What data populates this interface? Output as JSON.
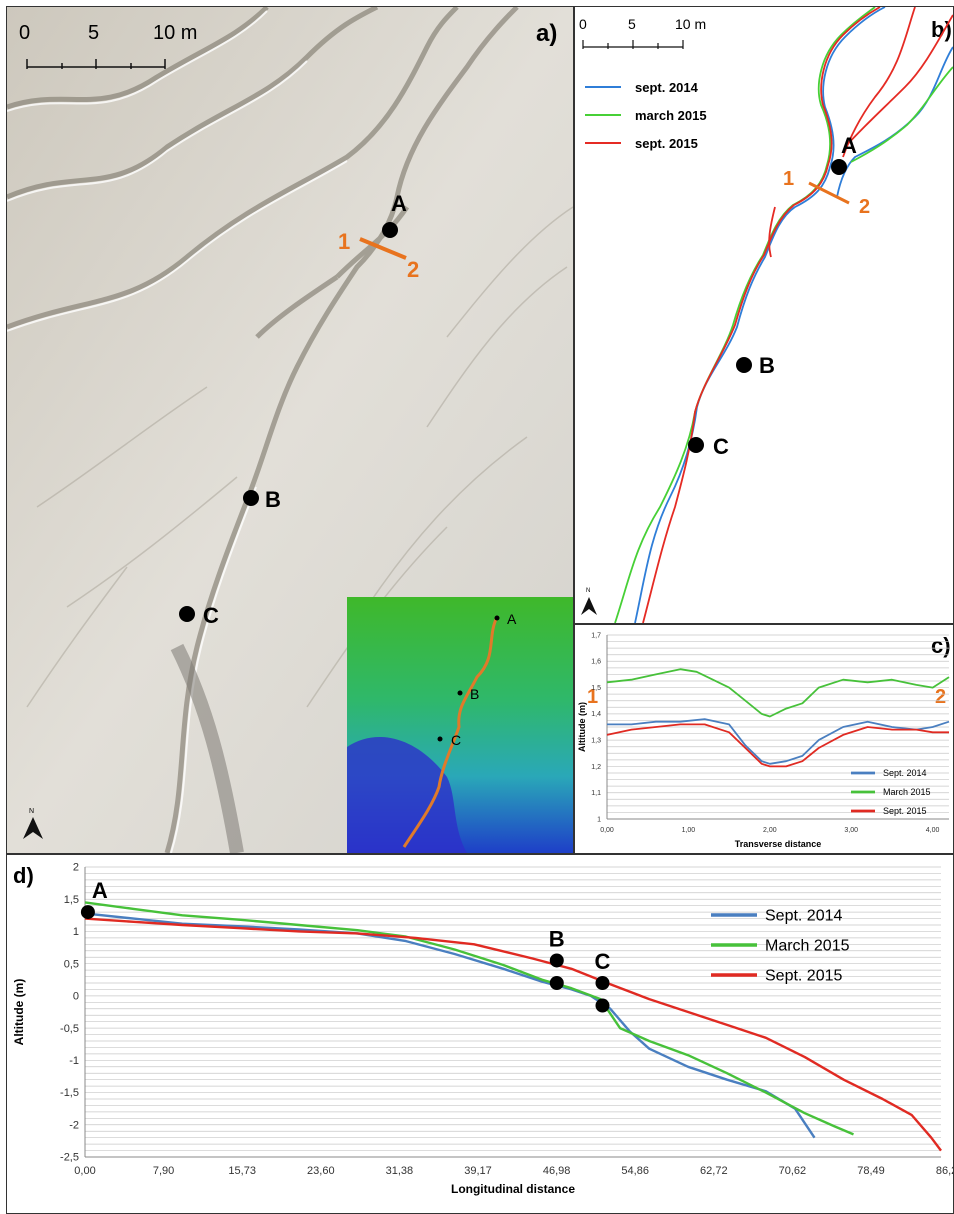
{
  "panels": {
    "a": {
      "label": "a)",
      "scale": {
        "ticks": [
          "0",
          "5",
          "10 m"
        ]
      },
      "points": [
        "A",
        "B",
        "C"
      ],
      "transect": {
        "start": "1",
        "end": "2"
      },
      "inset_points": [
        "A",
        "B",
        "C"
      ]
    },
    "b": {
      "label": "b)",
      "scale": {
        "ticks": [
          "0",
          "5",
          "10 m"
        ]
      },
      "legend": [
        {
          "label": "sept. 2014",
          "color": "#2f7ed8"
        },
        {
          "label": "march 2015",
          "color": "#47d036"
        },
        {
          "label": "sept. 2015",
          "color": "#e52b24"
        }
      ],
      "points": [
        "A",
        "B",
        "C"
      ],
      "transect": {
        "start": "1",
        "end": "2"
      }
    },
    "c": {
      "label": "c)",
      "left_label": "1",
      "right_label": "2"
    },
    "d": {
      "label": "d)",
      "points": [
        "A",
        "B",
        "C"
      ]
    }
  },
  "chart_data": [
    {
      "id": "c",
      "type": "line",
      "xlabel": "Transverse distance",
      "ylabel": "Altitude (m)",
      "xlim": [
        0,
        4.2
      ],
      "ylim": [
        1.0,
        1.7
      ],
      "x_ticks": [
        "0,00",
        "1,00",
        "2,00",
        "3,00",
        "4,00"
      ],
      "y_ticks": [
        "1",
        "1,1",
        "1,2",
        "1,3",
        "1,4",
        "1,5",
        "1,6",
        "1,7"
      ],
      "legend_position": "bottom-right",
      "series": [
        {
          "name": "Sept. 2014",
          "color": "#4a7fc0",
          "x": [
            0,
            0.3,
            0.6,
            0.9,
            1.2,
            1.5,
            1.7,
            1.9,
            2.0,
            2.2,
            2.4,
            2.6,
            2.9,
            3.2,
            3.5,
            3.8,
            4.0,
            4.2
          ],
          "y": [
            1.36,
            1.36,
            1.37,
            1.37,
            1.38,
            1.36,
            1.28,
            1.22,
            1.21,
            1.22,
            1.24,
            1.3,
            1.35,
            1.37,
            1.35,
            1.34,
            1.35,
            1.37
          ]
        },
        {
          "name": "March 2015",
          "color": "#47c13a",
          "x": [
            0,
            0.3,
            0.6,
            0.9,
            1.1,
            1.3,
            1.5,
            1.7,
            1.9,
            2.0,
            2.2,
            2.4,
            2.6,
            2.9,
            3.2,
            3.5,
            3.8,
            4.0,
            4.2
          ],
          "y": [
            1.52,
            1.53,
            1.55,
            1.57,
            1.56,
            1.53,
            1.5,
            1.45,
            1.4,
            1.39,
            1.42,
            1.44,
            1.5,
            1.53,
            1.52,
            1.53,
            1.51,
            1.5,
            1.54
          ]
        },
        {
          "name": "Sept. 2015",
          "color": "#e02a22",
          "x": [
            0,
            0.3,
            0.6,
            0.9,
            1.2,
            1.5,
            1.7,
            1.9,
            2.0,
            2.2,
            2.4,
            2.6,
            2.9,
            3.2,
            3.5,
            3.8,
            4.0,
            4.2
          ],
          "y": [
            1.32,
            1.34,
            1.35,
            1.36,
            1.36,
            1.33,
            1.27,
            1.21,
            1.2,
            1.2,
            1.22,
            1.27,
            1.32,
            1.35,
            1.34,
            1.34,
            1.33,
            1.33
          ]
        }
      ]
    },
    {
      "id": "d",
      "type": "line",
      "xlabel": "Longitudinal distance",
      "ylabel": "Altitude (m)",
      "xlim": [
        0,
        88
      ],
      "ylim": [
        -2.5,
        2
      ],
      "x_ticks": [
        "0,00",
        "7,90",
        "15,73",
        "23,60",
        "31,38",
        "39,17",
        "46,98",
        "54,86",
        "62,72",
        "70,62",
        "78,49",
        "86,28"
      ],
      "y_ticks": [
        "-2,5",
        "-2",
        "-1,5",
        "-1",
        "-0,5",
        "0",
        "0,5",
        "1",
        "1,5",
        "2"
      ],
      "legend_position": "right",
      "series": [
        {
          "name": "Sept. 2014",
          "color": "#4a7fc0",
          "x": [
            0,
            5,
            10,
            16,
            22,
            28,
            33,
            38,
            43,
            47,
            50,
            52,
            54,
            56,
            58,
            62,
            66,
            70,
            73,
            75
          ],
          "y": [
            1.28,
            1.2,
            1.12,
            1.08,
            1.03,
            0.97,
            0.85,
            0.65,
            0.42,
            0.22,
            0.1,
            0.0,
            -0.2,
            -0.55,
            -0.82,
            -1.1,
            -1.3,
            -1.48,
            -1.75,
            -2.2
          ]
        },
        {
          "name": "March 2015",
          "color": "#47c13a",
          "x": [
            0,
            5,
            10,
            16,
            22,
            28,
            33,
            38,
            43,
            47,
            50,
            53,
            55,
            58,
            62,
            66,
            70,
            74,
            77,
            79
          ],
          "y": [
            1.45,
            1.35,
            1.25,
            1.18,
            1.1,
            1.02,
            0.92,
            0.72,
            0.48,
            0.25,
            0.12,
            -0.05,
            -0.5,
            -0.7,
            -0.92,
            -1.2,
            -1.5,
            -1.82,
            -2.02,
            -2.15
          ]
        },
        {
          "name": "Sept. 2015",
          "color": "#e02a22",
          "x": [
            0,
            5,
            10,
            16,
            22,
            28,
            34,
            40,
            46,
            50,
            54,
            58,
            62,
            66,
            70,
            74,
            78,
            82,
            85,
            87,
            88
          ],
          "y": [
            1.2,
            1.15,
            1.1,
            1.05,
            1.0,
            0.97,
            0.9,
            0.8,
            0.58,
            0.42,
            0.18,
            -0.05,
            -0.25,
            -0.45,
            -0.65,
            -0.95,
            -1.3,
            -1.6,
            -1.85,
            -2.2,
            -2.4
          ]
        }
      ],
      "markers": [
        {
          "label": "A",
          "x": 0.3,
          "y": 1.3
        },
        {
          "label": "B",
          "x": 48.5,
          "y": 0.55
        },
        {
          "label": "B",
          "x": 48.5,
          "y": 0.2
        },
        {
          "label": "C",
          "x": 53.2,
          "y": 0.2
        },
        {
          "label": "C",
          "x": 53.2,
          "y": -0.15
        }
      ]
    }
  ]
}
